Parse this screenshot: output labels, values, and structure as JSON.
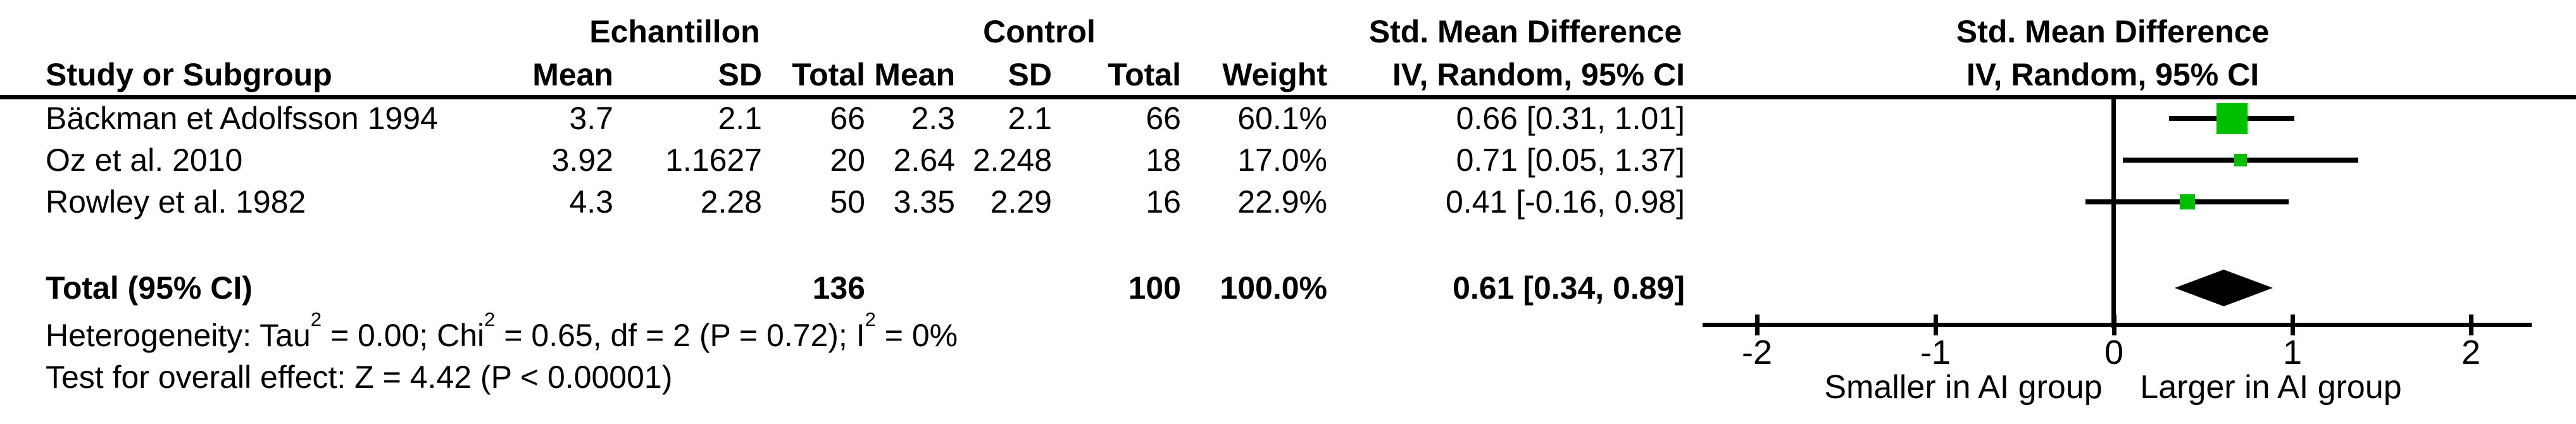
{
  "marker_color": "#00BE00",
  "table": {
    "headers": {
      "study": "Study or Subgroup",
      "group_experimental": "Echantillon",
      "group_control": "Control",
      "smd_table": "Std. Mean Difference",
      "smd_plot": "Std. Mean Difference",
      "mean_exp": "Mean",
      "sd_exp": "SD",
      "total_exp": "Total",
      "mean_ctl": "Mean",
      "sd_ctl": "SD",
      "total_ctl": "Total",
      "weight": "Weight",
      "method_table": "IV, Random, 95% CI",
      "method_plot": "IV, Random, 95% CI"
    },
    "studies": [
      {
        "name": "Bäckman et Adolfsson 1994",
        "mean_exp": "3.7",
        "sd_exp": "2.1",
        "total_exp": "66",
        "mean_ctl": "2.3",
        "sd_ctl": "2.1",
        "total_ctl": "66",
        "weight": "60.1%",
        "ci_text": "0.66 [0.31, 1.01]"
      },
      {
        "name": "Oz et al. 2010",
        "mean_exp": "3.92",
        "sd_exp": "1.1627",
        "total_exp": "20",
        "mean_ctl": "2.64",
        "sd_ctl": "2.248",
        "total_ctl": "18",
        "weight": "17.0%",
        "ci_text": "0.71 [0.05, 1.37]"
      },
      {
        "name": "Rowley et al. 1982",
        "mean_exp": "4.3",
        "sd_exp": "2.28",
        "total_exp": "50",
        "mean_ctl": "3.35",
        "sd_ctl": "2.29",
        "total_ctl": "16",
        "weight": "22.9%",
        "ci_text": "0.41 [-0.16, 0.98]"
      }
    ],
    "total_row": {
      "label": "Total (95% CI)",
      "total_exp": "136",
      "total_ctl": "100",
      "weight": "100.0%",
      "ci_text": "0.61 [0.34, 0.89]"
    }
  },
  "footer": {
    "heterogeneity_parts": [
      "Heterogeneity: Tau",
      "2",
      " = 0.00; Chi",
      "2",
      " = 0.65, df = 2 (P = 0.72); I",
      "2",
      " = 0%"
    ],
    "overall_effect": "Test for overall effect: Z = 4.42 (P < 0.00001)"
  },
  "axis": {
    "tick_labels": [
      "-2",
      "-1",
      "0",
      "1",
      "2"
    ],
    "caption_left": "Smaller in AI group",
    "caption_right": "Larger in AI group"
  },
  "chart_data": {
    "type": "forest",
    "effect_measure": "Std. Mean Difference",
    "model": "IV, Random, 95% CI",
    "group_labels": [
      "Echantillon",
      "Control"
    ],
    "studies": [
      {
        "name": "Bäckman et Adolfsson 1994",
        "exp_mean": 3.7,
        "exp_sd": 2.1,
        "exp_total": 66,
        "ctl_mean": 2.3,
        "ctl_sd": 2.1,
        "ctl_total": 66,
        "weight_pct": 60.1,
        "est": 0.66,
        "ci_low": 0.31,
        "ci_high": 1.01,
        "marker_px": 49
      },
      {
        "name": "Oz et al. 2010",
        "exp_mean": 3.92,
        "exp_sd": 1.1627,
        "exp_total": 20,
        "ctl_mean": 2.64,
        "ctl_sd": 2.248,
        "ctl_total": 18,
        "weight_pct": 17.0,
        "est": 0.71,
        "ci_low": 0.05,
        "ci_high": 1.37,
        "marker_px": 20
      },
      {
        "name": "Rowley et al. 1982",
        "exp_mean": 4.3,
        "exp_sd": 2.28,
        "exp_total": 50,
        "ctl_mean": 3.35,
        "ctl_sd": 2.29,
        "ctl_total": 16,
        "weight_pct": 22.9,
        "est": 0.41,
        "ci_low": -0.16,
        "ci_high": 0.98,
        "marker_px": 24
      }
    ],
    "total": {
      "label": "Total (95% CI)",
      "est": 0.61,
      "ci_low": 0.34,
      "ci_high": 0.89,
      "exp_total": 136,
      "ctl_total": 100,
      "weight_pct": 100.0
    },
    "heterogeneity": {
      "tau2": 0.0,
      "chi2": 0.65,
      "df": 2,
      "p": 0.72,
      "i2_pct": 0
    },
    "overall_effect": {
      "z": 4.42,
      "p": "< 0.00001"
    },
    "xlim": [
      -2,
      2
    ],
    "x_ticks": [
      -2,
      -1,
      0,
      1,
      2
    ],
    "x_caption_left": "Smaller in AI group",
    "x_caption_right": "Larger in AI group",
    "legend_position": "none",
    "grid": false
  }
}
